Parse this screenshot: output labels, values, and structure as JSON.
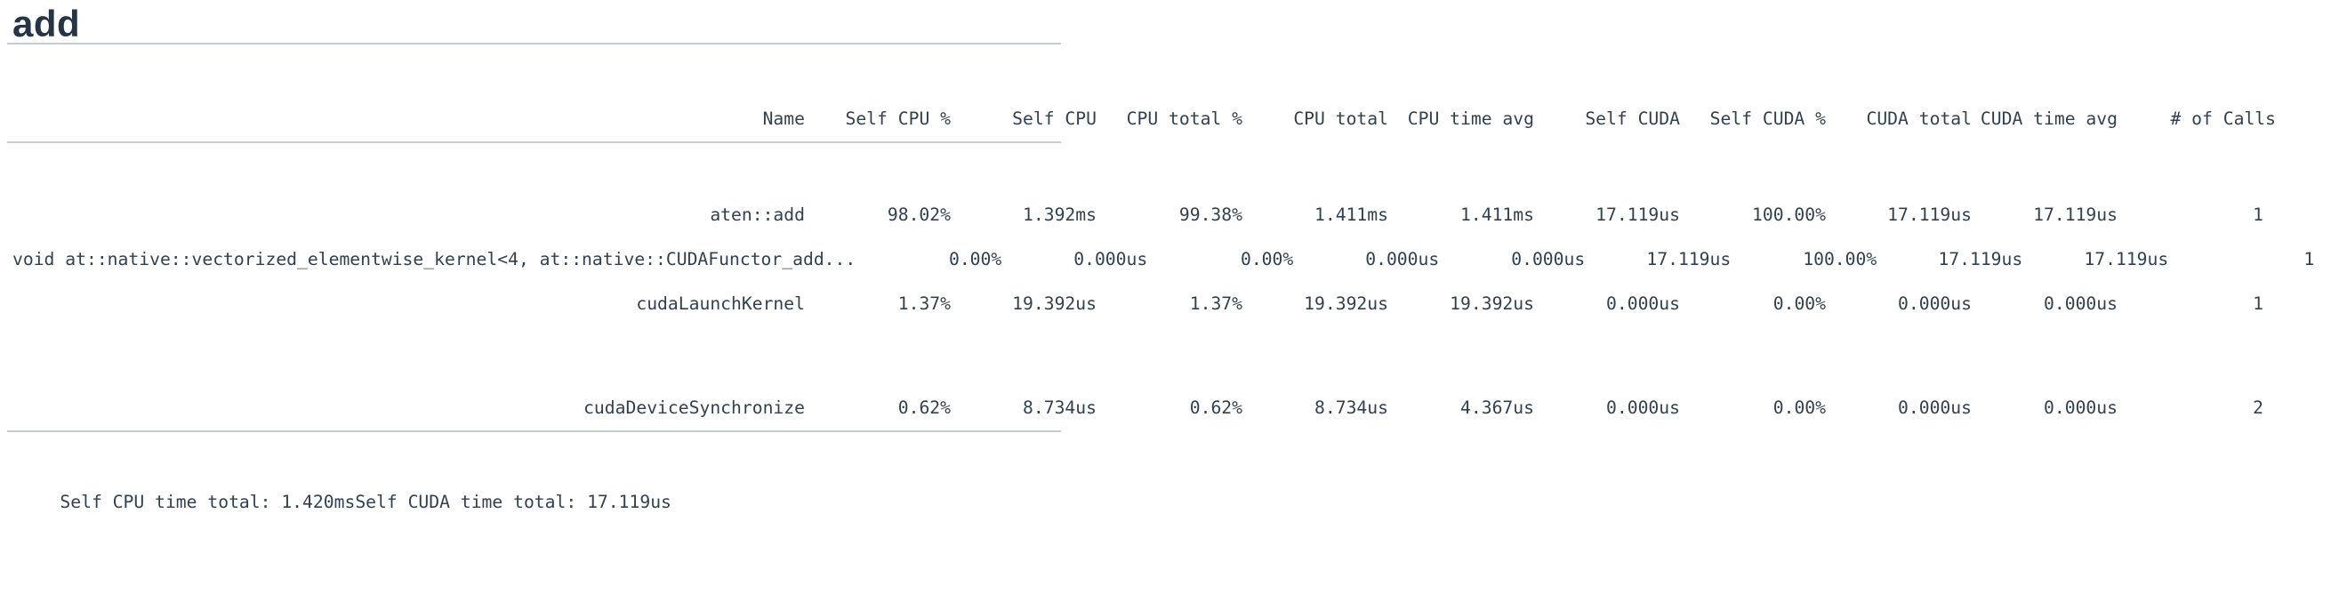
{
  "page": {
    "title": "add"
  },
  "theme": {
    "title_color": "#263445",
    "table_text_color": "#33414e",
    "divider_color": "#c9ccd0",
    "background_color": "#ffffff"
  },
  "table": {
    "columns": [
      "Name",
      "Self CPU %",
      "Self CPU",
      "CPU total %",
      "CPU total",
      "CPU time avg",
      "Self CUDA",
      "Self CUDA %",
      "CUDA total",
      "CUDA time avg",
      "# of Calls"
    ],
    "rows": [
      {
        "name": "aten::add",
        "values": [
          "98.02%",
          "1.392ms",
          "99.38%",
          "1.411ms",
          "1.411ms",
          "17.119us",
          "100.00%",
          "17.119us",
          "17.119us",
          "1"
        ]
      },
      {
        "name": "void at::native::vectorized_elementwise_kernel<4, at::native::CUDAFunctor_add...",
        "values": [
          "0.00%",
          "0.000us",
          "0.00%",
          "0.000us",
          "0.000us",
          "17.119us",
          "100.00%",
          "17.119us",
          "17.119us",
          "1"
        ]
      },
      {
        "name": "cudaLaunchKernel",
        "values": [
          "1.37%",
          "19.392us",
          "1.37%",
          "19.392us",
          "19.392us",
          "0.000us",
          "0.00%",
          "0.000us",
          "0.000us",
          "1"
        ]
      },
      {
        "name": "cudaDeviceSynchronize",
        "values": [
          "0.62%",
          "8.734us",
          "0.62%",
          "8.734us",
          "4.367us",
          "0.000us",
          "0.00%",
          "0.000us",
          "0.000us",
          "2"
        ]
      }
    ]
  },
  "footer": {
    "self_cpu_total": "Self CPU time total: 1.420ms",
    "self_cuda_total": "Self CUDA time total: 17.119us"
  }
}
